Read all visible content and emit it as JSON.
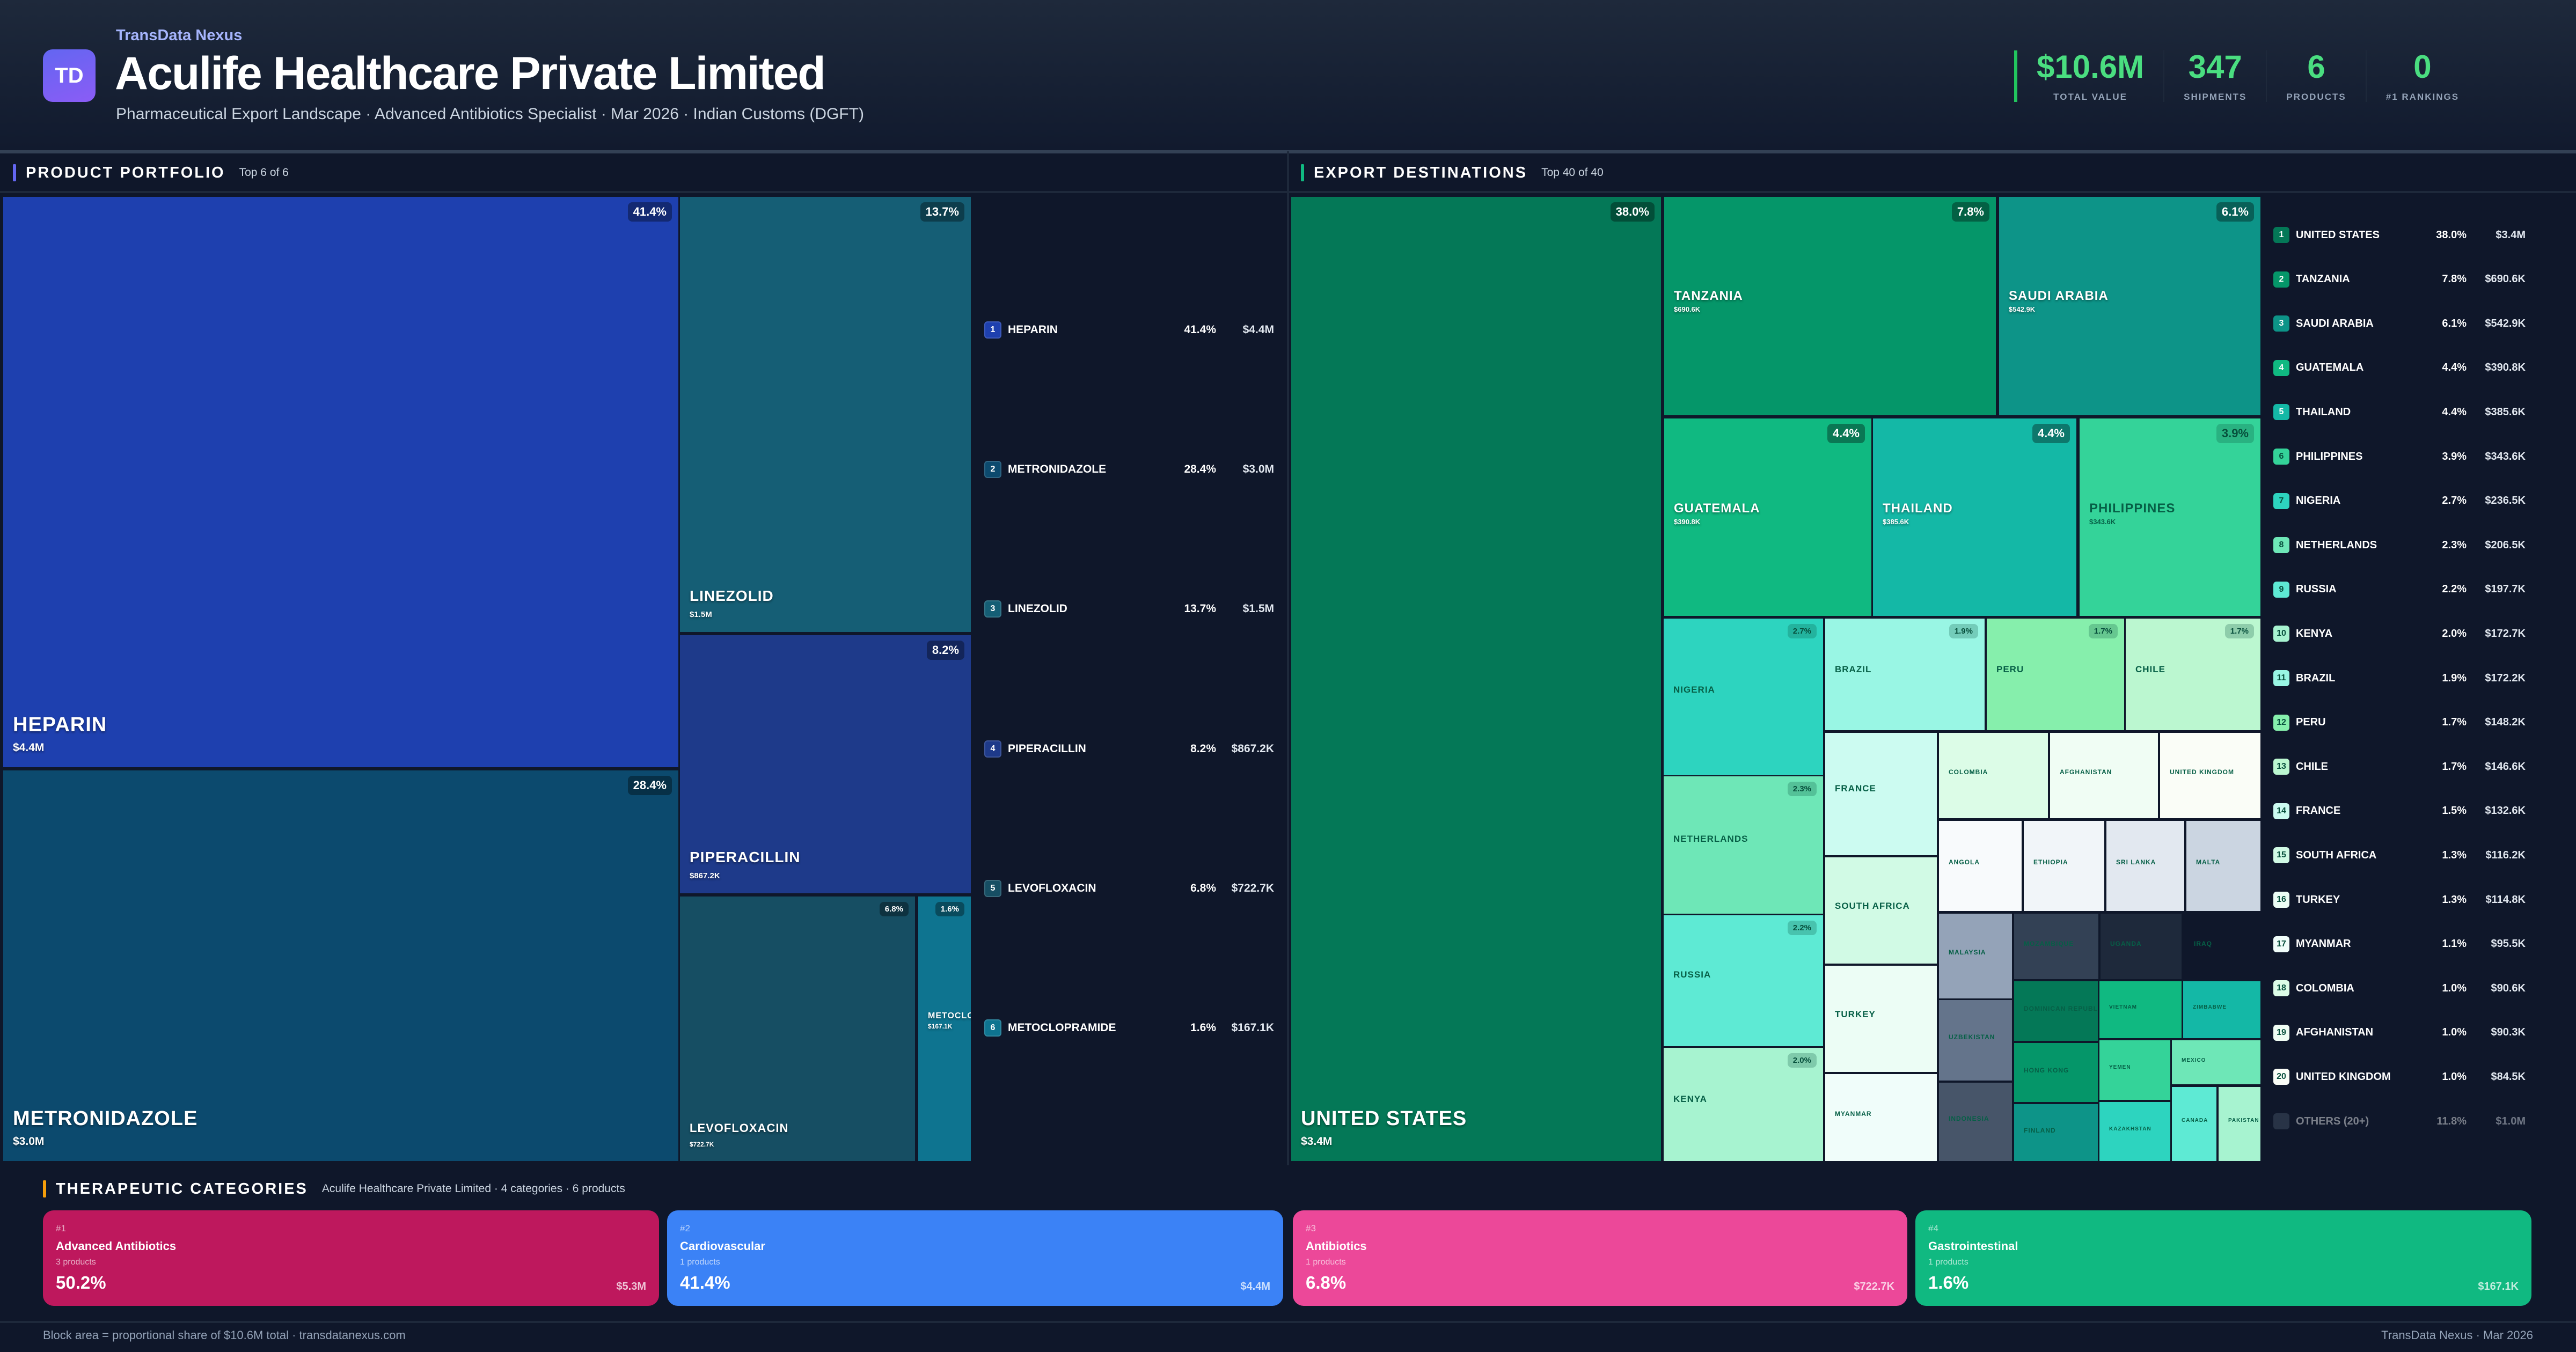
{
  "header": {
    "logo_text": "TD",
    "brand": "TransData Nexus",
    "title": "Aculife Healthcare Private Limited",
    "subtitle": "Pharmaceutical Export Landscape · Advanced Antibiotics Specialist · Mar 2026 · Indian Customs (DGFT)",
    "stats": [
      {
        "value": "$10.6M",
        "label": "TOTAL VALUE"
      },
      {
        "value": "347",
        "label": "SHIPMENTS"
      },
      {
        "value": "6",
        "label": "PRODUCTS"
      },
      {
        "value": "0",
        "label": "#1 RANKINGS"
      }
    ]
  },
  "products": {
    "title": "PRODUCT PORTFOLIO",
    "subtitle": "Top 6 of 6",
    "accent": "#6366f1",
    "items": [
      {
        "rank": "1",
        "name": "HEPARIN",
        "tile_name": "HEPARIN",
        "pct": "41.4%",
        "value": "$4.4M",
        "color": "#1e40af"
      },
      {
        "rank": "2",
        "name": "METRONIDAZOLE",
        "tile_name": "METRONIDAZOLE",
        "pct": "28.4%",
        "value": "$3.0M",
        "color": "#0c4a6e"
      },
      {
        "rank": "3",
        "name": "LINEZOLID",
        "tile_name": "LINEZOLID",
        "pct": "13.7%",
        "value": "$1.5M",
        "color": "#155e75"
      },
      {
        "rank": "4",
        "name": "PIPERACILLIN",
        "tile_name": "PIPERACILLIN",
        "pct": "8.2%",
        "value": "$867.2K",
        "color": "#1e3a8a"
      },
      {
        "rank": "5",
        "name": "LEVOFLOXACIN",
        "tile_name": "LEVOFLOXACIN",
        "pct": "6.8%",
        "value": "$722.7K",
        "color": "#164e63"
      },
      {
        "rank": "6",
        "name": "METOCLOPRAMIDE",
        "tile_name": "METOCLOP",
        "pct": "1.6%",
        "value": "$167.1K",
        "color": "#0e7490"
      }
    ]
  },
  "destinations": {
    "title": "EXPORT DESTINATIONS",
    "subtitle": "Top 40 of 40",
    "accent": "#10b981",
    "tiles": [
      {
        "name": "UNITED STATES",
        "pct": "38.0%",
        "value": "$3.4M",
        "color": "#047857"
      },
      {
        "name": "TANZANIA",
        "pct": "7.8%",
        "value": "$690.6K",
        "color": "#059669"
      },
      {
        "name": "SAUDI ARABIA",
        "pct": "6.1%",
        "value": "$542.9K",
        "color": "#0d9488"
      },
      {
        "name": "GUATEMALA",
        "pct": "4.4%",
        "value": "$390.8K",
        "color": "#10b981"
      },
      {
        "name": "THAILAND",
        "pct": "4.4%",
        "value": "$385.6K",
        "color": "#14b8a6"
      },
      {
        "name": "PHILIPPINES",
        "pct": "3.9%",
        "value": "$343.6K",
        "color": "#34d399"
      },
      {
        "name": "NIGERIA",
        "pct": "2.7%",
        "color": "#2dd4bf"
      },
      {
        "name": "NETHERLANDS",
        "pct": "2.3%",
        "color": "#6ee7b7"
      },
      {
        "name": "RUSSIA",
        "pct": "2.2%",
        "color": "#5eead4"
      },
      {
        "name": "KENYA",
        "pct": "2.0%",
        "color": "#a7f3d0"
      },
      {
        "name": "BRAZIL",
        "pct": "1.9%",
        "color": "#99f6e4"
      },
      {
        "name": "PERU",
        "pct": "1.7%",
        "color": "#86efac"
      },
      {
        "name": "CHILE",
        "pct": "1.7%",
        "color": "#bbf7d0"
      },
      {
        "name": "FRANCE",
        "color": "#ccfbf1"
      },
      {
        "name": "SOUTH AFRICA",
        "color": "#d1fae5"
      },
      {
        "name": "TURKEY",
        "color": "#ecfdf5"
      },
      {
        "name": "MYANMAR",
        "color": "#f0fdfa"
      },
      {
        "name": "COLOMBIA",
        "color": "#dcfce7"
      },
      {
        "name": "AFGHANISTAN",
        "color": "#f0fdf4"
      },
      {
        "name": "UNITED KINGDOM",
        "color": "#fafdf7"
      },
      {
        "name": "ANGOLA",
        "color": "#f8fafc"
      },
      {
        "name": "ETHIOPIA",
        "color": "#f1f5f9"
      },
      {
        "name": "SRI LANKA",
        "color": "#e2e8f0"
      },
      {
        "name": "MALTA",
        "color": "#cbd5e1"
      },
      {
        "name": "MALAYSIA",
        "color": "#94a3b8"
      },
      {
        "name": "UZBEKISTAN",
        "color": "#64748b"
      },
      {
        "name": "INDONESIA",
        "color": "#475569"
      },
      {
        "name": "MOZAMBIQUE",
        "color": "#334155"
      },
      {
        "name": "UGANDA",
        "color": "#1e293b"
      },
      {
        "name": "IRAQ",
        "color": "#0f172a"
      },
      {
        "name": "DOMINICAN REPUBLIC",
        "color": "#047857"
      },
      {
        "name": "HONG KONG",
        "color": "#059669"
      },
      {
        "name": "FINLAND",
        "color": "#0d9488"
      },
      {
        "name": "VIETNAM",
        "color": "#10b981"
      },
      {
        "name": "ZIMBABWE",
        "color": "#14b8a6"
      },
      {
        "name": "YEMEN",
        "color": "#34d399"
      },
      {
        "name": "KAZAKHSTAN",
        "color": "#2dd4bf"
      },
      {
        "name": "MEXICO",
        "color": "#6ee7b7"
      },
      {
        "name": "CANADA",
        "color": "#5eead4"
      },
      {
        "name": "PAKISTAN",
        "color": "#a7f3d0"
      }
    ],
    "list": [
      {
        "rank": "1",
        "name": "UNITED STATES",
        "pct": "38.0%",
        "value": "$3.4M",
        "color": "#047857"
      },
      {
        "rank": "2",
        "name": "TANZANIA",
        "pct": "7.8%",
        "value": "$690.6K",
        "color": "#059669"
      },
      {
        "rank": "3",
        "name": "SAUDI ARABIA",
        "pct": "6.1%",
        "value": "$542.9K",
        "color": "#0d9488"
      },
      {
        "rank": "4",
        "name": "GUATEMALA",
        "pct": "4.4%",
        "value": "$390.8K",
        "color": "#10b981"
      },
      {
        "rank": "5",
        "name": "THAILAND",
        "pct": "4.4%",
        "value": "$385.6K",
        "color": "#14b8a6"
      },
      {
        "rank": "6",
        "name": "PHILIPPINES",
        "pct": "3.9%",
        "value": "$343.6K",
        "color": "#34d399"
      },
      {
        "rank": "7",
        "name": "NIGERIA",
        "pct": "2.7%",
        "value": "$236.5K",
        "color": "#2dd4bf"
      },
      {
        "rank": "8",
        "name": "NETHERLANDS",
        "pct": "2.3%",
        "value": "$206.5K",
        "color": "#6ee7b7"
      },
      {
        "rank": "9",
        "name": "RUSSIA",
        "pct": "2.2%",
        "value": "$197.7K",
        "color": "#5eead4"
      },
      {
        "rank": "10",
        "name": "KENYA",
        "pct": "2.0%",
        "value": "$172.7K",
        "color": "#a7f3d0"
      },
      {
        "rank": "11",
        "name": "BRAZIL",
        "pct": "1.9%",
        "value": "$172.2K",
        "color": "#99f6e4"
      },
      {
        "rank": "12",
        "name": "PERU",
        "pct": "1.7%",
        "value": "$148.2K",
        "color": "#86efac"
      },
      {
        "rank": "13",
        "name": "CHILE",
        "pct": "1.7%",
        "value": "$146.6K",
        "color": "#bbf7d0"
      },
      {
        "rank": "14",
        "name": "FRANCE",
        "pct": "1.5%",
        "value": "$132.6K",
        "color": "#ccfbf1"
      },
      {
        "rank": "15",
        "name": "SOUTH AFRICA",
        "pct": "1.3%",
        "value": "$116.2K",
        "color": "#d1fae5"
      },
      {
        "rank": "16",
        "name": "TURKEY",
        "pct": "1.3%",
        "value": "$114.8K",
        "color": "#ecfdf5"
      },
      {
        "rank": "17",
        "name": "MYANMAR",
        "pct": "1.1%",
        "value": "$95.5K",
        "color": "#f0fdfa"
      },
      {
        "rank": "18",
        "name": "COLOMBIA",
        "pct": "1.0%",
        "value": "$90.6K",
        "color": "#dcfce7"
      },
      {
        "rank": "19",
        "name": "AFGHANISTAN",
        "pct": "1.0%",
        "value": "$90.3K",
        "color": "#f0fdf4"
      },
      {
        "rank": "20",
        "name": "UNITED KINGDOM",
        "pct": "1.0%",
        "value": "$84.5K",
        "color": "#fafdf7"
      },
      {
        "rank": "",
        "name": "OTHERS (20+)",
        "pct": "11.8%",
        "value": "$1.0M",
        "color": "#475569"
      }
    ]
  },
  "categories": {
    "title": "THERAPEUTIC CATEGORIES",
    "subtitle": "Aculife Healthcare Private Limited · 4 categories · 6 products",
    "accent": "#f59e0b",
    "items": [
      {
        "rank": "#1",
        "name": "Advanced Antibiotics",
        "products": "3 products",
        "pct": "50.2%",
        "value": "$5.3M",
        "color": "#be185d"
      },
      {
        "rank": "#2",
        "name": "Cardiovascular",
        "products": "1 products",
        "pct": "41.4%",
        "value": "$4.4M",
        "color": "#3b82f6"
      },
      {
        "rank": "#3",
        "name": "Antibiotics",
        "products": "1 products",
        "pct": "6.8%",
        "value": "$722.7K",
        "color": "#ec4899"
      },
      {
        "rank": "#4",
        "name": "Gastrointestinal",
        "products": "1 products",
        "pct": "1.6%",
        "value": "$167.1K",
        "color": "#10b981"
      }
    ]
  },
  "footer": {
    "left": "Block area = proportional share of $10.6M total · transdatanexus.com",
    "right": "TransData Nexus · Mar 2026"
  }
}
